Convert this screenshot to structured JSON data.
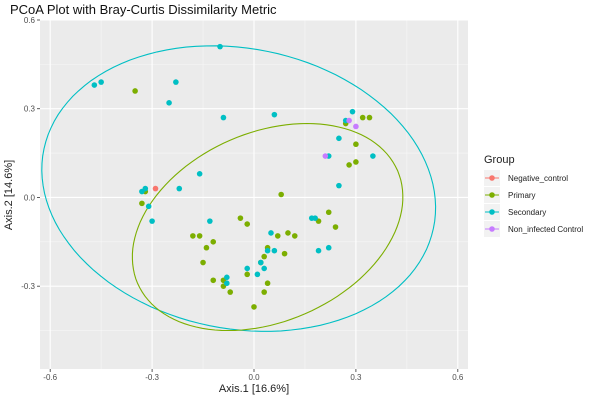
{
  "chart_data": {
    "type": "scatter",
    "title": "PCoA Plot with Bray-Curtis Dissimilarity Metric",
    "xlabel": "Axis.1   [16.6%]",
    "ylabel": "Axis.2   [14.6%]",
    "xlim": [
      -0.63,
      0.63
    ],
    "ylim": [
      -0.58,
      0.6
    ],
    "x_ticks": [
      -0.6,
      -0.3,
      0.0,
      0.3,
      0.6
    ],
    "x_tick_labels": [
      "-0.6",
      "-0.3",
      "0.0",
      "0.3",
      "0.6"
    ],
    "y_ticks": [
      -0.3,
      0.0,
      0.3,
      0.6
    ],
    "y_tick_labels": [
      "-0.3",
      "0.0",
      "0.3",
      "0.6"
    ],
    "grid": true,
    "legend_position": "right",
    "legend_title": "Group",
    "series": [
      {
        "name": "Negative_control",
        "color": "#F8766D",
        "points": [
          [
            -0.29,
            0.03
          ]
        ]
      },
      {
        "name": "Primary",
        "color": "#7CAE00",
        "points": [
          [
            -0.35,
            0.36
          ],
          [
            -0.33,
            -0.02
          ],
          [
            -0.32,
            0.02
          ],
          [
            -0.18,
            -0.13
          ],
          [
            -0.16,
            -0.13
          ],
          [
            -0.15,
            -0.22
          ],
          [
            -0.14,
            -0.17
          ],
          [
            -0.12,
            -0.15
          ],
          [
            -0.12,
            -0.28
          ],
          [
            -0.09,
            -0.3
          ],
          [
            -0.09,
            -0.28
          ],
          [
            -0.07,
            -0.32
          ],
          [
            -0.04,
            -0.07
          ],
          [
            -0.02,
            -0.09
          ],
          [
            -0.02,
            -0.26
          ],
          [
            0.0,
            -0.37
          ],
          [
            0.02,
            -0.22
          ],
          [
            0.03,
            -0.2
          ],
          [
            0.03,
            -0.32
          ],
          [
            0.04,
            -0.17
          ],
          [
            0.04,
            -0.29
          ],
          [
            0.07,
            -0.13
          ],
          [
            0.08,
            0.01
          ],
          [
            0.09,
            -0.19
          ],
          [
            0.1,
            -0.12
          ],
          [
            0.12,
            -0.13
          ],
          [
            0.19,
            -0.08
          ],
          [
            0.22,
            -0.05
          ],
          [
            0.24,
            -0.1
          ],
          [
            0.27,
            0.25
          ],
          [
            0.28,
            0.11
          ],
          [
            0.3,
            0.12
          ],
          [
            0.3,
            0.18
          ],
          [
            0.32,
            0.27
          ],
          [
            0.34,
            0.27
          ]
        ]
      },
      {
        "name": "Secondary",
        "color": "#00BFC4",
        "points": [
          [
            -0.47,
            0.38
          ],
          [
            -0.45,
            0.39
          ],
          [
            -0.33,
            0.02
          ],
          [
            -0.32,
            0.03
          ],
          [
            -0.31,
            -0.03
          ],
          [
            -0.3,
            -0.08
          ],
          [
            -0.25,
            0.32
          ],
          [
            -0.23,
            0.39
          ],
          [
            -0.22,
            0.03
          ],
          [
            -0.16,
            0.08
          ],
          [
            -0.13,
            -0.08
          ],
          [
            -0.1,
            0.51
          ],
          [
            -0.09,
            0.27
          ],
          [
            -0.08,
            -0.27
          ],
          [
            -0.08,
            -0.29
          ],
          [
            -0.02,
            -0.24
          ],
          [
            0.01,
            -0.26
          ],
          [
            0.02,
            -0.22
          ],
          [
            0.03,
            -0.24
          ],
          [
            0.04,
            -0.18
          ],
          [
            0.05,
            -0.12
          ],
          [
            0.06,
            0.28
          ],
          [
            0.06,
            -0.18
          ],
          [
            0.17,
            -0.07
          ],
          [
            0.18,
            -0.07
          ],
          [
            0.19,
            -0.18
          ],
          [
            0.22,
            0.14
          ],
          [
            0.22,
            -0.17
          ],
          [
            0.25,
            0.04
          ],
          [
            0.25,
            0.2
          ],
          [
            0.27,
            0.26
          ],
          [
            0.29,
            0.29
          ],
          [
            0.35,
            0.14
          ]
        ]
      },
      {
        "name": "Non_infected Control",
        "color": "#C77CFF",
        "points": [
          [
            0.21,
            0.14
          ],
          [
            0.28,
            0.26
          ],
          [
            0.3,
            0.24
          ]
        ]
      }
    ],
    "ellipses": [
      {
        "series": "Secondary",
        "color": "#00BFC4",
        "cx": -0.045,
        "cy": 0.03,
        "rx": 0.59,
        "ry": 0.47,
        "angle_deg": -18
      },
      {
        "series": "Primary",
        "color": "#7CAE00",
        "cx": 0.04,
        "cy": -0.1,
        "rx": 0.43,
        "ry": 0.31,
        "angle_deg": 33
      }
    ]
  }
}
